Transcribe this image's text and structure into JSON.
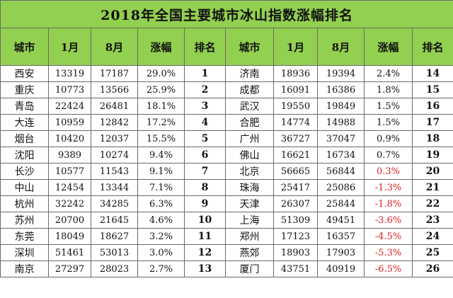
{
  "title": "2018年全国主要城市冰山指数涨幅排名",
  "headers": [
    "城市",
    "1月",
    "8月",
    "涨幅",
    "排名",
    "城市",
    "1月",
    "8月",
    "涨幅",
    "排名"
  ],
  "colors": {
    "header_bg": "#92d050",
    "negative_text": "#e02020",
    "border": "#6a6a6a"
  },
  "rows": [
    {
      "left": {
        "city": "西安",
        "jan": "13319",
        "aug": "17187",
        "change": "29.0%",
        "rank": "1"
      },
      "right": {
        "city": "济南",
        "jan": "18936",
        "aug": "19394",
        "change": "2.4%",
        "rank": "14"
      }
    },
    {
      "left": {
        "city": "重庆",
        "jan": "10773",
        "aug": "13566",
        "change": "25.9%",
        "rank": "2"
      },
      "right": {
        "city": "成都",
        "jan": "16091",
        "aug": "16386",
        "change": "1.8%",
        "rank": "15"
      }
    },
    {
      "left": {
        "city": "青岛",
        "jan": "22424",
        "aug": "26481",
        "change": "18.1%",
        "rank": "3"
      },
      "right": {
        "city": "武汉",
        "jan": "19550",
        "aug": "19849",
        "change": "1.5%",
        "rank": "16"
      }
    },
    {
      "left": {
        "city": "大连",
        "jan": "10959",
        "aug": "12842",
        "change": "17.2%",
        "rank": "4"
      },
      "right": {
        "city": "合肥",
        "jan": "14774",
        "aug": "14988",
        "change": "1.5%",
        "rank": "17"
      }
    },
    {
      "left": {
        "city": "烟台",
        "jan": "10420",
        "aug": "12037",
        "change": "15.5%",
        "rank": "5"
      },
      "right": {
        "city": "广州",
        "jan": "36727",
        "aug": "37047",
        "change": "0.9%",
        "rank": "18"
      }
    },
    {
      "left": {
        "city": "沈阳",
        "jan": "9389",
        "aug": "10274",
        "change": "9.4%",
        "rank": "6"
      },
      "right": {
        "city": "佛山",
        "jan": "16621",
        "aug": "16734",
        "change": "0.7%",
        "rank": "19"
      }
    },
    {
      "left": {
        "city": "长沙",
        "jan": "10577",
        "aug": "11543",
        "change": "9.1%",
        "rank": "7"
      },
      "right": {
        "city": "北京",
        "jan": "56665",
        "aug": "56844",
        "change": "0.3%",
        "rank": "20",
        "neg": true
      }
    },
    {
      "left": {
        "city": "中山",
        "jan": "12454",
        "aug": "13344",
        "change": "7.1%",
        "rank": "8"
      },
      "right": {
        "city": "珠海",
        "jan": "25417",
        "aug": "25086",
        "change": "-1.3%",
        "rank": "21",
        "neg": true
      }
    },
    {
      "left": {
        "city": "杭州",
        "jan": "32242",
        "aug": "34285",
        "change": "6.3%",
        "rank": "9"
      },
      "right": {
        "city": "天津",
        "jan": "26307",
        "aug": "25844",
        "change": "-1.8%",
        "rank": "22",
        "neg": true
      }
    },
    {
      "left": {
        "city": "苏州",
        "jan": "20700",
        "aug": "21645",
        "change": "4.6%",
        "rank": "10"
      },
      "right": {
        "city": "上海",
        "jan": "51309",
        "aug": "49451",
        "change": "-3.6%",
        "rank": "23",
        "neg": true
      }
    },
    {
      "left": {
        "city": "东莞",
        "jan": "18049",
        "aug": "18627",
        "change": "3.2%",
        "rank": "11"
      },
      "right": {
        "city": "郑州",
        "jan": "17123",
        "aug": "16357",
        "change": "-4.5%",
        "rank": "24",
        "neg": true
      }
    },
    {
      "left": {
        "city": "深圳",
        "jan": "51461",
        "aug": "53013",
        "change": "3.0%",
        "rank": "12"
      },
      "right": {
        "city": "燕郊",
        "jan": "18903",
        "aug": "17903",
        "change": "-5.3%",
        "rank": "25",
        "neg": true
      }
    },
    {
      "left": {
        "city": "南京",
        "jan": "27297",
        "aug": "28023",
        "change": "2.7%",
        "rank": "13"
      },
      "right": {
        "city": "厦门",
        "jan": "43751",
        "aug": "40919",
        "change": "-6.5%",
        "rank": "26",
        "neg": true
      }
    }
  ]
}
